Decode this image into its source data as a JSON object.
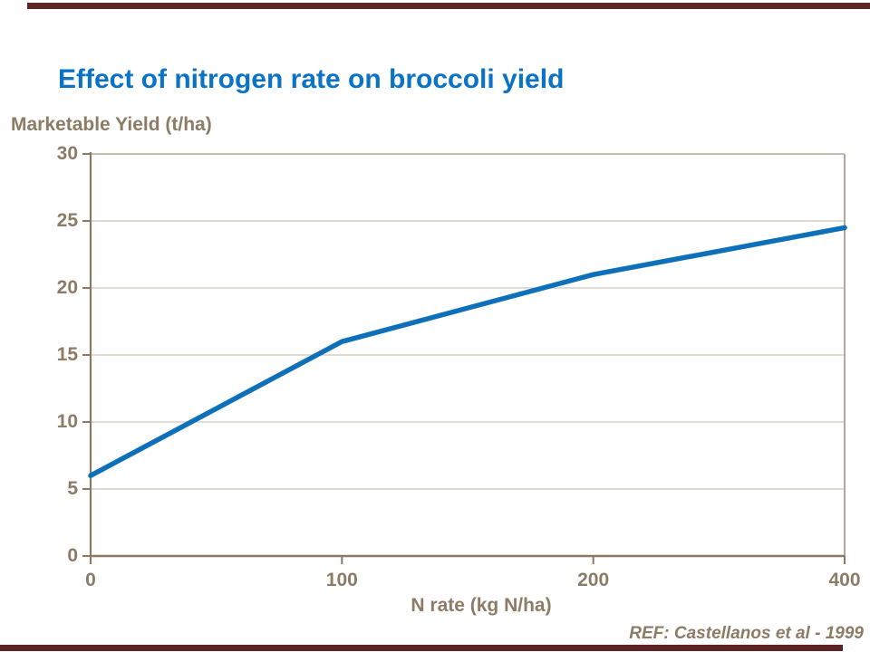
{
  "page": {
    "ref_note": "REF: Castellanos et al - 1999"
  },
  "colors": {
    "accent_bar": "#5e2425",
    "title_blue": "#0b73c5",
    "line_blue": "#0f70ba",
    "axis_brown": "#8a7963",
    "label_brown": "#8c7b65",
    "gridline": "#cdc6ba",
    "plot_border": "#b2a897"
  },
  "chart_data": {
    "type": "line",
    "title": "Effect of nitrogen rate on broccoli yield",
    "xlabel": "N rate (kg N/ha)",
    "ylabel": "Marketable Yield (t/ha)",
    "categories": [
      "0",
      "100",
      "200",
      "400"
    ],
    "values": [
      6,
      16,
      21,
      24.5
    ],
    "y_ticks": [
      0,
      5,
      10,
      15,
      20,
      25,
      30
    ],
    "ylim": [
      0,
      30
    ],
    "x_axis_type": "categorical-equal-spacing",
    "grid": "horizontal",
    "legend": "none",
    "annotations": [
      "REF: Castellanos et al - 1999"
    ]
  }
}
